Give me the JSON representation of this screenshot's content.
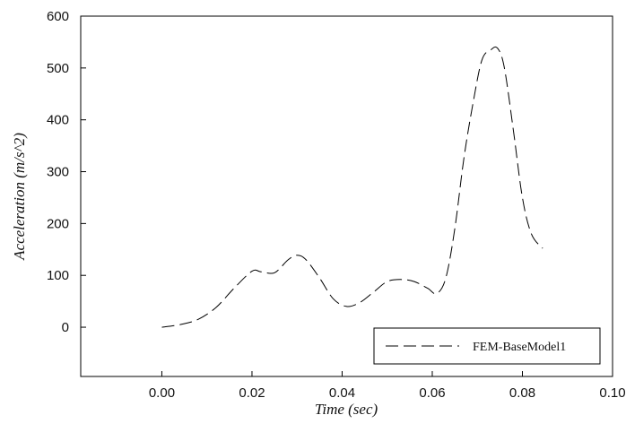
{
  "chart_data": {
    "type": "line",
    "title": "",
    "xlabel": "Time (sec)",
    "ylabel": "Acceleration (m/s^2)",
    "xlim": [
      -0.018,
      0.1
    ],
    "ylim": [
      -95,
      600
    ],
    "x_ticks": [
      0.0,
      0.02,
      0.04,
      0.06,
      0.08,
      0.1
    ],
    "x_tick_labels": [
      "0.00",
      "0.02",
      "0.04",
      "0.06",
      "0.08",
      "0.10"
    ],
    "y_ticks": [
      0,
      100,
      200,
      300,
      400,
      500,
      600
    ],
    "y_tick_labels": [
      "0",
      "100",
      "200",
      "300",
      "400",
      "500",
      "600"
    ],
    "grid": false,
    "legend_position": "bottom-right",
    "series": [
      {
        "name": "FEM-BaseModel1",
        "line_style": "dashed",
        "color": "#000000",
        "x": [
          0.0,
          0.004,
          0.008,
          0.012,
          0.016,
          0.02,
          0.022,
          0.025,
          0.028,
          0.03,
          0.032,
          0.035,
          0.038,
          0.041,
          0.044,
          0.047,
          0.05,
          0.053,
          0.056,
          0.059,
          0.061,
          0.063,
          0.065,
          0.067,
          0.069,
          0.071,
          0.073,
          0.0745,
          0.076,
          0.078,
          0.08,
          0.082,
          0.0845
        ],
        "y": [
          0,
          5,
          15,
          38,
          75,
          108,
          107,
          105,
          130,
          139,
          130,
          95,
          55,
          40,
          48,
          68,
          88,
          92,
          88,
          75,
          65,
          95,
          190,
          325,
          430,
          515,
          535,
          538,
          500,
          380,
          250,
          180,
          152
        ]
      }
    ]
  }
}
